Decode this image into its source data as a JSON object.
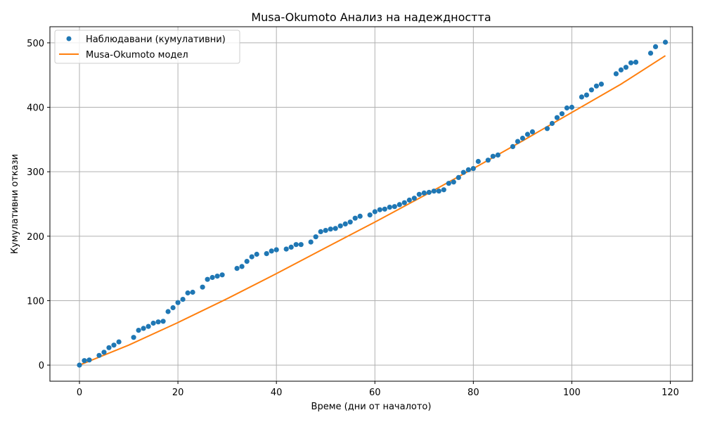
{
  "chart_data": {
    "type": "scatter",
    "title": "Musa-Okumoto Анализ на надеждността",
    "xlabel": "Време (дни от началото)",
    "ylabel": "Кумулативни откази",
    "xlim": [
      -6,
      124.5
    ],
    "ylim": [
      -25,
      525
    ],
    "xticks": [
      0,
      20,
      40,
      60,
      80,
      100,
      120
    ],
    "yticks": [
      0,
      100,
      200,
      300,
      400,
      500
    ],
    "grid": true,
    "legend_position": "top-left",
    "colors": {
      "observed": "#1f77b4",
      "model": "#ff7f0e",
      "grid": "#b0b0b0"
    },
    "series": [
      {
        "name": "Наблюдавани (кумулативни)",
        "kind": "scatter",
        "points": [
          [
            0,
            0
          ],
          [
            1,
            7
          ],
          [
            2,
            8
          ],
          [
            4,
            15
          ],
          [
            5,
            20
          ],
          [
            6,
            27
          ],
          [
            7,
            31
          ],
          [
            8,
            36
          ],
          [
            11,
            43
          ],
          [
            12,
            54
          ],
          [
            13,
            57
          ],
          [
            14,
            60
          ],
          [
            15,
            65
          ],
          [
            16,
            67
          ],
          [
            17,
            68
          ],
          [
            18,
            83
          ],
          [
            19,
            89
          ],
          [
            20,
            97
          ],
          [
            21,
            102
          ],
          [
            22,
            112
          ],
          [
            23,
            113
          ],
          [
            25,
            121
          ],
          [
            26,
            133
          ],
          [
            27,
            136
          ],
          [
            28,
            138
          ],
          [
            29,
            140
          ],
          [
            32,
            150
          ],
          [
            33,
            153
          ],
          [
            34,
            161
          ],
          [
            35,
            168
          ],
          [
            36,
            172
          ],
          [
            38,
            173
          ],
          [
            39,
            177
          ],
          [
            40,
            179
          ],
          [
            42,
            180
          ],
          [
            43,
            183
          ],
          [
            44,
            187
          ],
          [
            45,
            187
          ],
          [
            47,
            191
          ],
          [
            48,
            199
          ],
          [
            49,
            207
          ],
          [
            50,
            209
          ],
          [
            51,
            211
          ],
          [
            52,
            212
          ],
          [
            53,
            216
          ],
          [
            54,
            219
          ],
          [
            55,
            222
          ],
          [
            56,
            228
          ],
          [
            57,
            231
          ],
          [
            59,
            233
          ],
          [
            60,
            238
          ],
          [
            61,
            241
          ],
          [
            62,
            242
          ],
          [
            63,
            245
          ],
          [
            64,
            246
          ],
          [
            65,
            249
          ],
          [
            66,
            252
          ],
          [
            67,
            256
          ],
          [
            68,
            259
          ],
          [
            69,
            265
          ],
          [
            70,
            267
          ],
          [
            71,
            268
          ],
          [
            72,
            270
          ],
          [
            73,
            270
          ],
          [
            74,
            272
          ],
          [
            75,
            282
          ],
          [
            76,
            284
          ],
          [
            77,
            291
          ],
          [
            78,
            299
          ],
          [
            79,
            303
          ],
          [
            80,
            305
          ],
          [
            81,
            316
          ],
          [
            83,
            318
          ],
          [
            84,
            324
          ],
          [
            85,
            326
          ],
          [
            88,
            339
          ],
          [
            89,
            347
          ],
          [
            90,
            352
          ],
          [
            91,
            358
          ],
          [
            92,
            362
          ],
          [
            95,
            367
          ],
          [
            96,
            375
          ],
          [
            97,
            384
          ],
          [
            98,
            390
          ],
          [
            99,
            399
          ],
          [
            100,
            400
          ],
          [
            102,
            416
          ],
          [
            103,
            419
          ],
          [
            104,
            427
          ],
          [
            105,
            433
          ],
          [
            106,
            436
          ],
          [
            109,
            452
          ],
          [
            110,
            458
          ],
          [
            111,
            462
          ],
          [
            112,
            469
          ],
          [
            113,
            470
          ],
          [
            116,
            484
          ],
          [
            117,
            494
          ],
          [
            119,
            501
          ]
        ]
      },
      {
        "name": "Musa-Okumoto модел",
        "kind": "line",
        "points": [
          [
            0,
            0
          ],
          [
            10,
            31
          ],
          [
            20,
            66
          ],
          [
            30,
            103
          ],
          [
            40,
            142
          ],
          [
            50,
            182
          ],
          [
            60,
            222
          ],
          [
            70,
            263
          ],
          [
            80,
            305
          ],
          [
            90,
            348
          ],
          [
            100,
            392
          ],
          [
            110,
            436
          ],
          [
            119,
            480
          ]
        ]
      }
    ]
  }
}
